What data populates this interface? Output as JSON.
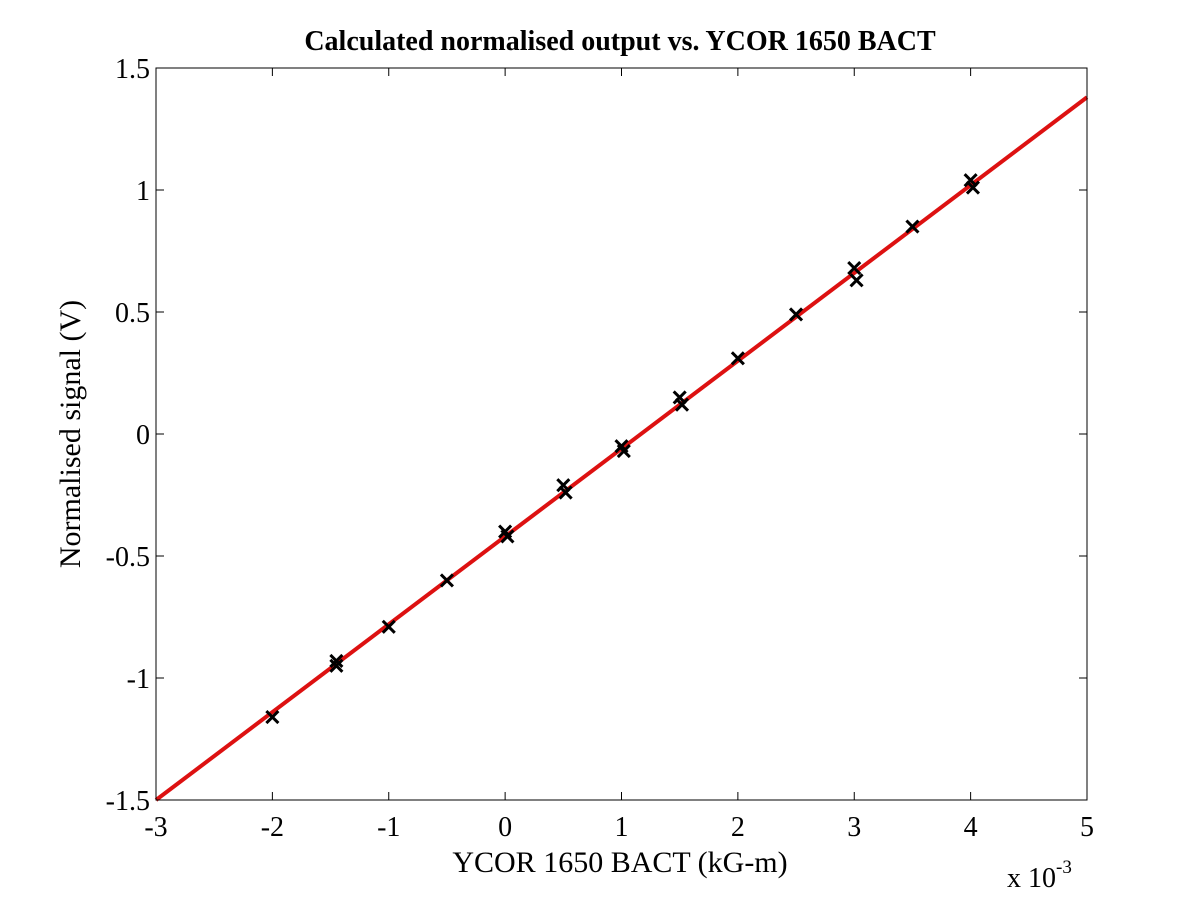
{
  "chart_data": {
    "type": "scatter",
    "title": "Calculated normalised output vs. YCOR 1650 BACT",
    "xlabel": "YCOR 1650 BACT (kG-m)",
    "ylabel": "Normalised signal (V)",
    "x_multiplier": {
      "base": "x 10",
      "exponent": "-3"
    },
    "xlim": [
      -3,
      5
    ],
    "ylim": [
      -1.5,
      1.5
    ],
    "x_unit_scale": 0.001,
    "x_ticks": [
      "-3",
      "-2",
      "-1",
      "0",
      "1",
      "2",
      "3",
      "4",
      "5"
    ],
    "y_ticks": [
      "1.5",
      "1",
      "0.5",
      "0",
      "-0.5",
      "-1",
      "-1.5"
    ],
    "grid": false,
    "colors": {
      "fit_line": "#dd1111",
      "markers": "#000000"
    },
    "series": [
      {
        "kind": "markers",
        "marker": "x",
        "x": [
          -2.0,
          -1.45,
          -1.45,
          -1.0,
          -0.5,
          0.0,
          0.02,
          0.5,
          0.52,
          1.0,
          1.02,
          1.5,
          1.52,
          2.0,
          2.5,
          3.0,
          3.02,
          3.5,
          4.0,
          4.02
        ],
        "y": [
          -1.16,
          -0.93,
          -0.95,
          -0.79,
          -0.6,
          -0.4,
          -0.42,
          -0.21,
          -0.24,
          -0.05,
          -0.07,
          0.15,
          0.12,
          0.31,
          0.49,
          0.68,
          0.63,
          0.85,
          1.04,
          1.01
        ]
      },
      {
        "kind": "line",
        "x": [
          -3,
          5
        ],
        "y": [
          -1.5,
          1.38
        ]
      }
    ]
  }
}
